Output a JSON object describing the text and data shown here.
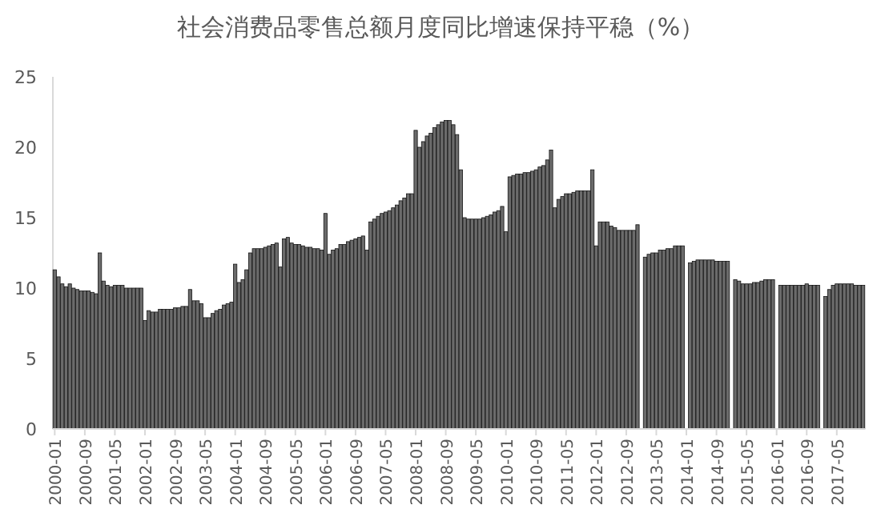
{
  "chart_data": {
    "type": "bar",
    "title": "社会消费品零售总额月度同比增速保持平稳（%）",
    "color": "#6b6b6b",
    "ylim": [
      0,
      25
    ],
    "yticks": [
      0,
      5,
      10,
      15,
      20,
      25
    ],
    "categories": [
      "2000-01",
      null,
      null,
      null,
      null,
      null,
      null,
      null,
      "2000-09",
      null,
      null,
      null,
      null,
      null,
      null,
      null,
      "2001-05",
      null,
      null,
      null,
      null,
      null,
      null,
      null,
      "2002-01",
      null,
      null,
      null,
      null,
      null,
      null,
      null,
      "2002-09",
      null,
      null,
      null,
      null,
      null,
      null,
      null,
      "2003-05",
      null,
      null,
      null,
      null,
      null,
      null,
      null,
      "2004-01",
      null,
      null,
      null,
      null,
      null,
      null,
      null,
      "2004-09",
      null,
      null,
      null,
      null,
      null,
      null,
      null,
      "2005-05",
      null,
      null,
      null,
      null,
      null,
      null,
      null,
      "2006-01",
      null,
      null,
      null,
      null,
      null,
      null,
      null,
      "2006-09",
      null,
      null,
      null,
      null,
      null,
      null,
      null,
      "2007-05",
      null,
      null,
      null,
      null,
      null,
      null,
      null,
      "2008-01",
      null,
      null,
      null,
      null,
      null,
      null,
      null,
      "2008-09",
      null,
      null,
      null,
      null,
      null,
      null,
      null,
      "2009-05",
      null,
      null,
      null,
      null,
      null,
      null,
      null,
      "2010-01",
      null,
      null,
      null,
      null,
      null,
      null,
      null,
      "2010-09",
      null,
      null,
      null,
      null,
      null,
      null,
      null,
      "2011-05",
      null,
      null,
      null,
      null,
      null,
      null,
      null,
      "2012-01",
      null,
      null,
      null,
      null,
      null,
      null,
      null,
      "2012-09",
      null,
      null,
      null,
      null,
      null,
      null,
      null,
      "2013-05",
      null,
      null,
      null,
      null,
      null,
      null,
      null,
      "2014-01",
      null,
      null,
      null,
      null,
      null,
      null,
      null,
      "2014-09",
      null,
      null,
      null,
      null,
      null,
      null,
      null,
      "2015-05",
      null,
      null,
      null,
      null,
      null,
      null,
      null,
      "2016-01",
      null,
      null,
      null,
      null,
      null,
      null,
      null,
      "2016-09",
      null,
      null,
      null,
      null,
      null,
      null,
      null,
      "2017-05",
      null,
      null,
      null,
      null,
      null,
      null,
      null
    ],
    "values": [
      11.3,
      10.8,
      10.3,
      10.1,
      10.3,
      10.0,
      9.9,
      9.8,
      9.8,
      9.8,
      9.7,
      9.6,
      12.5,
      10.5,
      10.2,
      10.1,
      10.2,
      10.2,
      10.2,
      10.0,
      10.0,
      10.0,
      10.0,
      10.0,
      7.7,
      8.4,
      8.3,
      8.3,
      8.5,
      8.5,
      8.5,
      8.5,
      8.6,
      8.6,
      8.7,
      8.7,
      9.9,
      9.1,
      9.1,
      8.9,
      7.9,
      7.9,
      8.2,
      8.4,
      8.5,
      8.8,
      8.9,
      9.0,
      11.7,
      10.4,
      10.6,
      11.3,
      12.5,
      12.8,
      12.8,
      12.8,
      12.9,
      13.0,
      13.1,
      13.2,
      11.5,
      13.5,
      13.6,
      13.2,
      13.1,
      13.1,
      13.0,
      12.9,
      12.9,
      12.8,
      12.8,
      12.7,
      15.3,
      12.4,
      12.7,
      12.8,
      13.1,
      13.1,
      13.3,
      13.4,
      13.5,
      13.6,
      13.7,
      12.7,
      14.7,
      14.9,
      15.1,
      15.3,
      15.4,
      15.5,
      15.7,
      15.9,
      16.2,
      16.4,
      16.7,
      16.7,
      21.2,
      20.0,
      20.4,
      20.8,
      21.0,
      21.4,
      21.6,
      21.8,
      21.9,
      21.9,
      21.6,
      20.9,
      18.4,
      15.0,
      14.9,
      14.9,
      14.9,
      14.9,
      15.0,
      15.1,
      15.2,
      15.4,
      15.5,
      15.8,
      14.0,
      17.9,
      18.0,
      18.1,
      18.1,
      18.2,
      18.2,
      18.3,
      18.4,
      18.6,
      18.7,
      19.1,
      19.8,
      15.7,
      16.3,
      16.5,
      16.7,
      16.7,
      16.8,
      16.9,
      16.9,
      16.9,
      16.9,
      18.4,
      13.0,
      14.7,
      14.7,
      14.7,
      14.4,
      14.3,
      14.1,
      14.1,
      14.1,
      14.1,
      14.1,
      14.5,
      null,
      12.2,
      12.4,
      12.5,
      12.5,
      12.7,
      12.7,
      12.8,
      12.8,
      13.0,
      13.0,
      13.0,
      null,
      11.8,
      11.9,
      12.0,
      12.0,
      12.0,
      12.0,
      12.0,
      11.9,
      11.9,
      11.9,
      11.9,
      null,
      10.6,
      10.5,
      10.3,
      10.3,
      10.3,
      10.4,
      10.4,
      10.5,
      10.6,
      10.6,
      10.6,
      null,
      10.2,
      10.2,
      10.2,
      10.2,
      10.2,
      10.2,
      10.2,
      10.3,
      10.2,
      10.2,
      10.2,
      null,
      9.4,
      9.9,
      10.2,
      10.3,
      10.3,
      10.3,
      10.3,
      10.3,
      10.2,
      10.2,
      10.2
    ]
  }
}
